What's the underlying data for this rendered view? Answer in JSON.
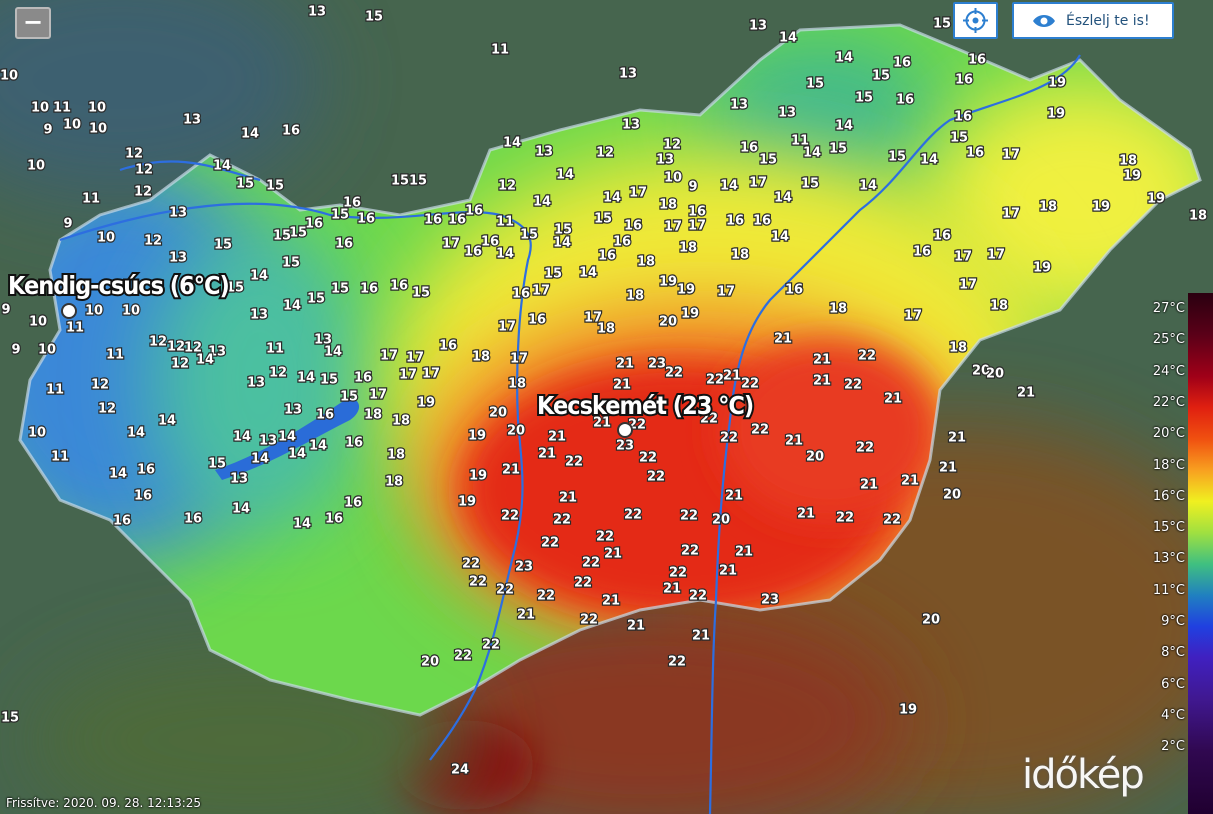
{
  "zoom_out": "−",
  "observe_button": "Észlelj te is!",
  "highlights": [
    "Kendig-csúcs (6°C)",
    "Kecskemét (23 °C)"
  ],
  "legend": [
    "27°C",
    "25°C",
    "24°C",
    "22°C",
    "20°C",
    "18°C",
    "16°C",
    "15°C",
    "13°C",
    "11°C",
    "9°C",
    "8°C",
    "6°C",
    "4°C",
    "2°C"
  ],
  "updated": "Frissítve: 2020. 09. 28. 12:13:25",
  "logo": "időkép",
  "readings": [
    13,
    15,
    11,
    13,
    13,
    14,
    14,
    15,
    10,
    10,
    11,
    10,
    9,
    10,
    10,
    10,
    12,
    12,
    12,
    11,
    13,
    14,
    16,
    14,
    15,
    15,
    13,
    9,
    10,
    12,
    13,
    15,
    14,
    15,
    13,
    14,
    15,
    15,
    16,
    16,
    15,
    9,
    10,
    11,
    10,
    10,
    9,
    10,
    11,
    12,
    12,
    12,
    13,
    12,
    14,
    11,
    13,
    14,
    12,
    14,
    15,
    13,
    11,
    12,
    12,
    10,
    11,
    14,
    14,
    14,
    13,
    14,
    13,
    16,
    15,
    18,
    16,
    17,
    17,
    17,
    17,
    17,
    16,
    18,
    17,
    18,
    19,
    18,
    20,
    20,
    19,
    16,
    14,
    14,
    14,
    15,
    13,
    14,
    16,
    16,
    16,
    16,
    14,
    14,
    16,
    16,
    18,
    18,
    19,
    21,
    19,
    21,
    21,
    22,
    21,
    21,
    23,
    22,
    21,
    22,
    21,
    22,
    21,
    22,
    23,
    22,
    22,
    22,
    22,
    22,
    21,
    21,
    21,
    22,
    21,
    22,
    21,
    20,
    22,
    21,
    21,
    21,
    21,
    20,
    21,
    20,
    22,
    22,
    22,
    22,
    22,
    22,
    21,
    22,
    21,
    22,
    22,
    21,
    21,
    22,
    22,
    23,
    22,
    22,
    22,
    22,
    22,
    21,
    21,
    22,
    23,
    21,
    22,
    21,
    22,
    22,
    20,
    21,
    22,
    20,
    19,
    24,
    15,
    15,
    15,
    16,
    16,
    16,
    15,
    16,
    16,
    19,
    19,
    17,
    16,
    15,
    14,
    15,
    14,
    15,
    14,
    11,
    13,
    16,
    15,
    17,
    15,
    14,
    18,
    19,
    19,
    18,
    19,
    18,
    17,
    16,
    16,
    17,
    17,
    17,
    19,
    18,
    17,
    18,
    20,
    20,
    21,
    18,
    16,
    18,
    18,
    19,
    19,
    17,
    19,
    20,
    18,
    18,
    17,
    18,
    17,
    16,
    17,
    16,
    14,
    15,
    14,
    16,
    17,
    16,
    16,
    16,
    11,
    14,
    12,
    13,
    14,
    12,
    13,
    12,
    13,
    13,
    14,
    14,
    17,
    18,
    9,
    14,
    16,
    17,
    17,
    16,
    16,
    14,
    14,
    10,
    16,
    16,
    15,
    16,
    15,
    15,
    16,
    14,
    15,
    15,
    16,
    15,
    16,
    16,
    15,
    16,
    15,
    15
  ]
}
